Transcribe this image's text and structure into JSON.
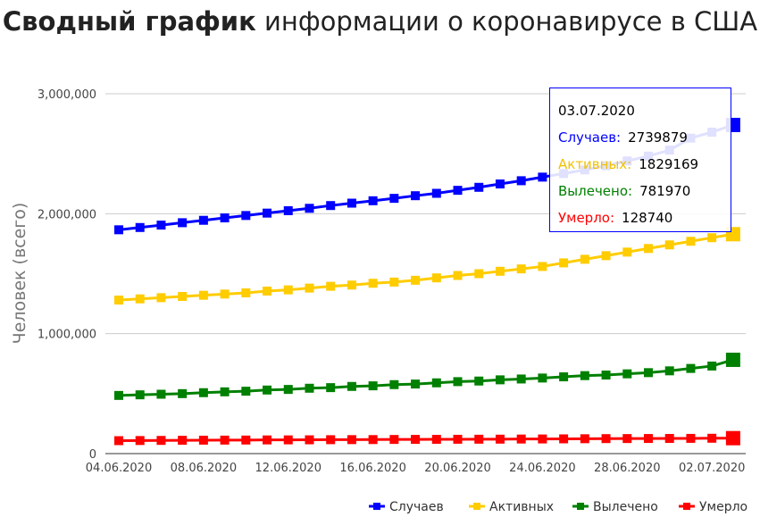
{
  "title": {
    "bold": "Сводный график",
    "rest": " информации о коронавирусе в США"
  },
  "chart_data": {
    "type": "line",
    "title": "Сводный график информации о коронавирусе в США",
    "ylabel": "Человек (всего)",
    "xlabel": "",
    "ylim": [
      0,
      3000000
    ],
    "yticks": [
      "0",
      "1,000,000",
      "2,000,000",
      "3,000,000"
    ],
    "xticks": [
      "04.06.2020",
      "08.06.2020",
      "12.06.2020",
      "16.06.2020",
      "20.06.2020",
      "24.06.2020",
      "28.06.2020",
      "02.07.2020"
    ],
    "x_start": "04.06.2020",
    "x_end": "03.07.2020",
    "legend_position": "bottom-right",
    "series": [
      {
        "name": "Случаев",
        "color": "#0000ff",
        "values": [
          1866000,
          1885000,
          1905000,
          1925000,
          1945000,
          1965000,
          1985000,
          2005000,
          2025000,
          2045000,
          2068000,
          2088000,
          2108000,
          2128000,
          2150000,
          2170000,
          2195000,
          2220000,
          2248000,
          2275000,
          2305000,
          2335000,
          2365000,
          2400000,
          2440000,
          2480000,
          2530000,
          2630000,
          2680000,
          2739879
        ]
      },
      {
        "name": "Активных",
        "color": "#ffcc00",
        "values": [
          1280000,
          1290000,
          1300000,
          1310000,
          1320000,
          1330000,
          1340000,
          1355000,
          1365000,
          1380000,
          1395000,
          1405000,
          1420000,
          1430000,
          1445000,
          1465000,
          1485000,
          1500000,
          1520000,
          1540000,
          1560000,
          1590000,
          1620000,
          1650000,
          1680000,
          1710000,
          1740000,
          1770000,
          1800000,
          1829169
        ]
      },
      {
        "name": "Вылечено",
        "color": "#008000",
        "values": [
          485000,
          490000,
          495000,
          500000,
          508000,
          515000,
          520000,
          530000,
          535000,
          545000,
          550000,
          560000,
          565000,
          575000,
          580000,
          590000,
          600000,
          605000,
          615000,
          622000,
          630000,
          640000,
          650000,
          655000,
          665000,
          675000,
          690000,
          710000,
          730000,
          781970
        ]
      },
      {
        "name": "Умерло",
        "color": "#ff0000",
        "values": [
          108000,
          109000,
          110000,
          111000,
          112000,
          112500,
          113000,
          114000,
          114500,
          115000,
          116000,
          116500,
          117000,
          118000,
          118500,
          119000,
          119500,
          120000,
          120500,
          121500,
          122000,
          123000,
          124000,
          125000,
          125500,
          126000,
          126500,
          127000,
          128000,
          128740
        ]
      }
    ]
  },
  "tooltip": {
    "date": "03.07.2020",
    "rows": [
      {
        "label": "Случаев:",
        "value": "2739879"
      },
      {
        "label": "Активных:",
        "value": "1829169"
      },
      {
        "label": "Вылечено:",
        "value": "781970"
      },
      {
        "label": "Умерло:",
        "value": "128740"
      }
    ]
  }
}
